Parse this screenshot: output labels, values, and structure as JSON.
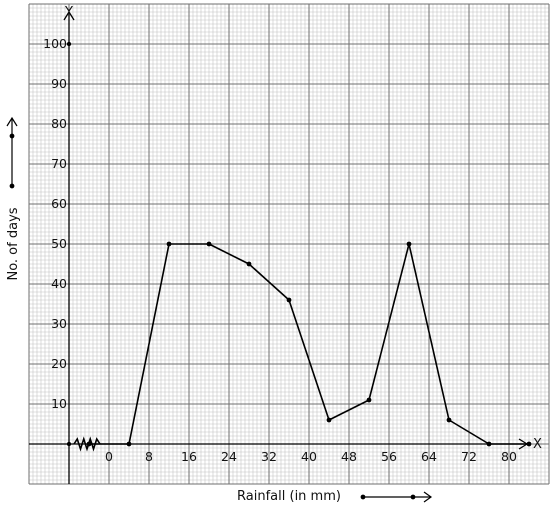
{
  "chart_data": {
    "type": "line",
    "xlabel": "Rainfall (in mm)",
    "ylabel": "No. of days",
    "x_axis_letter": "X",
    "y_axis_letter": "Y",
    "x_tick_labels": [
      "0",
      "8",
      "16",
      "24",
      "32",
      "40",
      "48",
      "56",
      "64",
      "72",
      "80"
    ],
    "y_tick_labels": [
      "10",
      "20",
      "30",
      "40",
      "50",
      "60",
      "70",
      "80",
      "90",
      "100"
    ],
    "x_ticks": [
      0,
      8,
      16,
      24,
      32,
      40,
      48,
      56,
      64,
      72,
      80
    ],
    "y_ticks": [
      10,
      20,
      30,
      40,
      50,
      60,
      70,
      80,
      90,
      100
    ],
    "x_break": true,
    "grid": true,
    "line_color": "#000000",
    "grid_minor_color": "#c4c4c4",
    "grid_major_color": "#6f6f6f",
    "series": [
      {
        "x": [
          -4,
          4,
          12,
          20,
          28,
          36,
          44,
          52,
          60,
          68,
          76,
          84
        ],
        "y": [
          0,
          0,
          50,
          50,
          45,
          36,
          6,
          11,
          50,
          6,
          0,
          0
        ]
      }
    ]
  }
}
